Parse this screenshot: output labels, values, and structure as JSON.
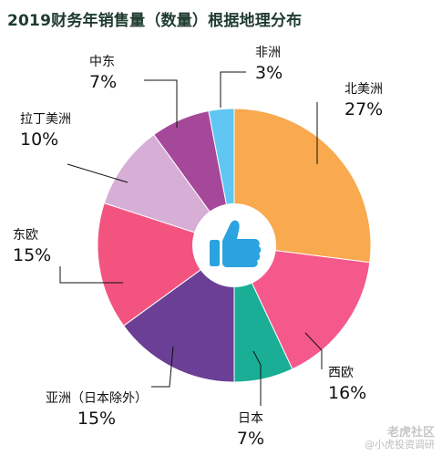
{
  "chart_data": {
    "type": "pie",
    "title": "2019财务年销售量（数量）根据地理分布",
    "series": [
      {
        "name": "北美洲",
        "label": "27%",
        "value": 27,
        "color": "#f9a94e"
      },
      {
        "name": "西欧",
        "label": "16%",
        "value": 16,
        "color": "#f5588a"
      },
      {
        "name": "日本",
        "label": "7%",
        "value": 7,
        "color": "#1aae96"
      },
      {
        "name": "亚洲（日本除外）",
        "label": "15%",
        "value": 15,
        "color": "#6a3f95"
      },
      {
        "name": "东欧",
        "label": "15%",
        "value": 15,
        "color": "#f2547f"
      },
      {
        "name": "拉丁美洲",
        "label": "10%",
        "value": 10,
        "color": "#d7aed6"
      },
      {
        "name": "中东",
        "label": "7%",
        "value": 7,
        "color": "#a6489a"
      },
      {
        "name": "非洲",
        "label": "3%",
        "value": 3,
        "color": "#5fc7f2"
      }
    ],
    "center_icon": "thumbs-up-icon",
    "center_icon_color": "#2ba3e0"
  },
  "watermark": {
    "main": "老虎社区",
    "sub": "@小虎投资调研"
  }
}
